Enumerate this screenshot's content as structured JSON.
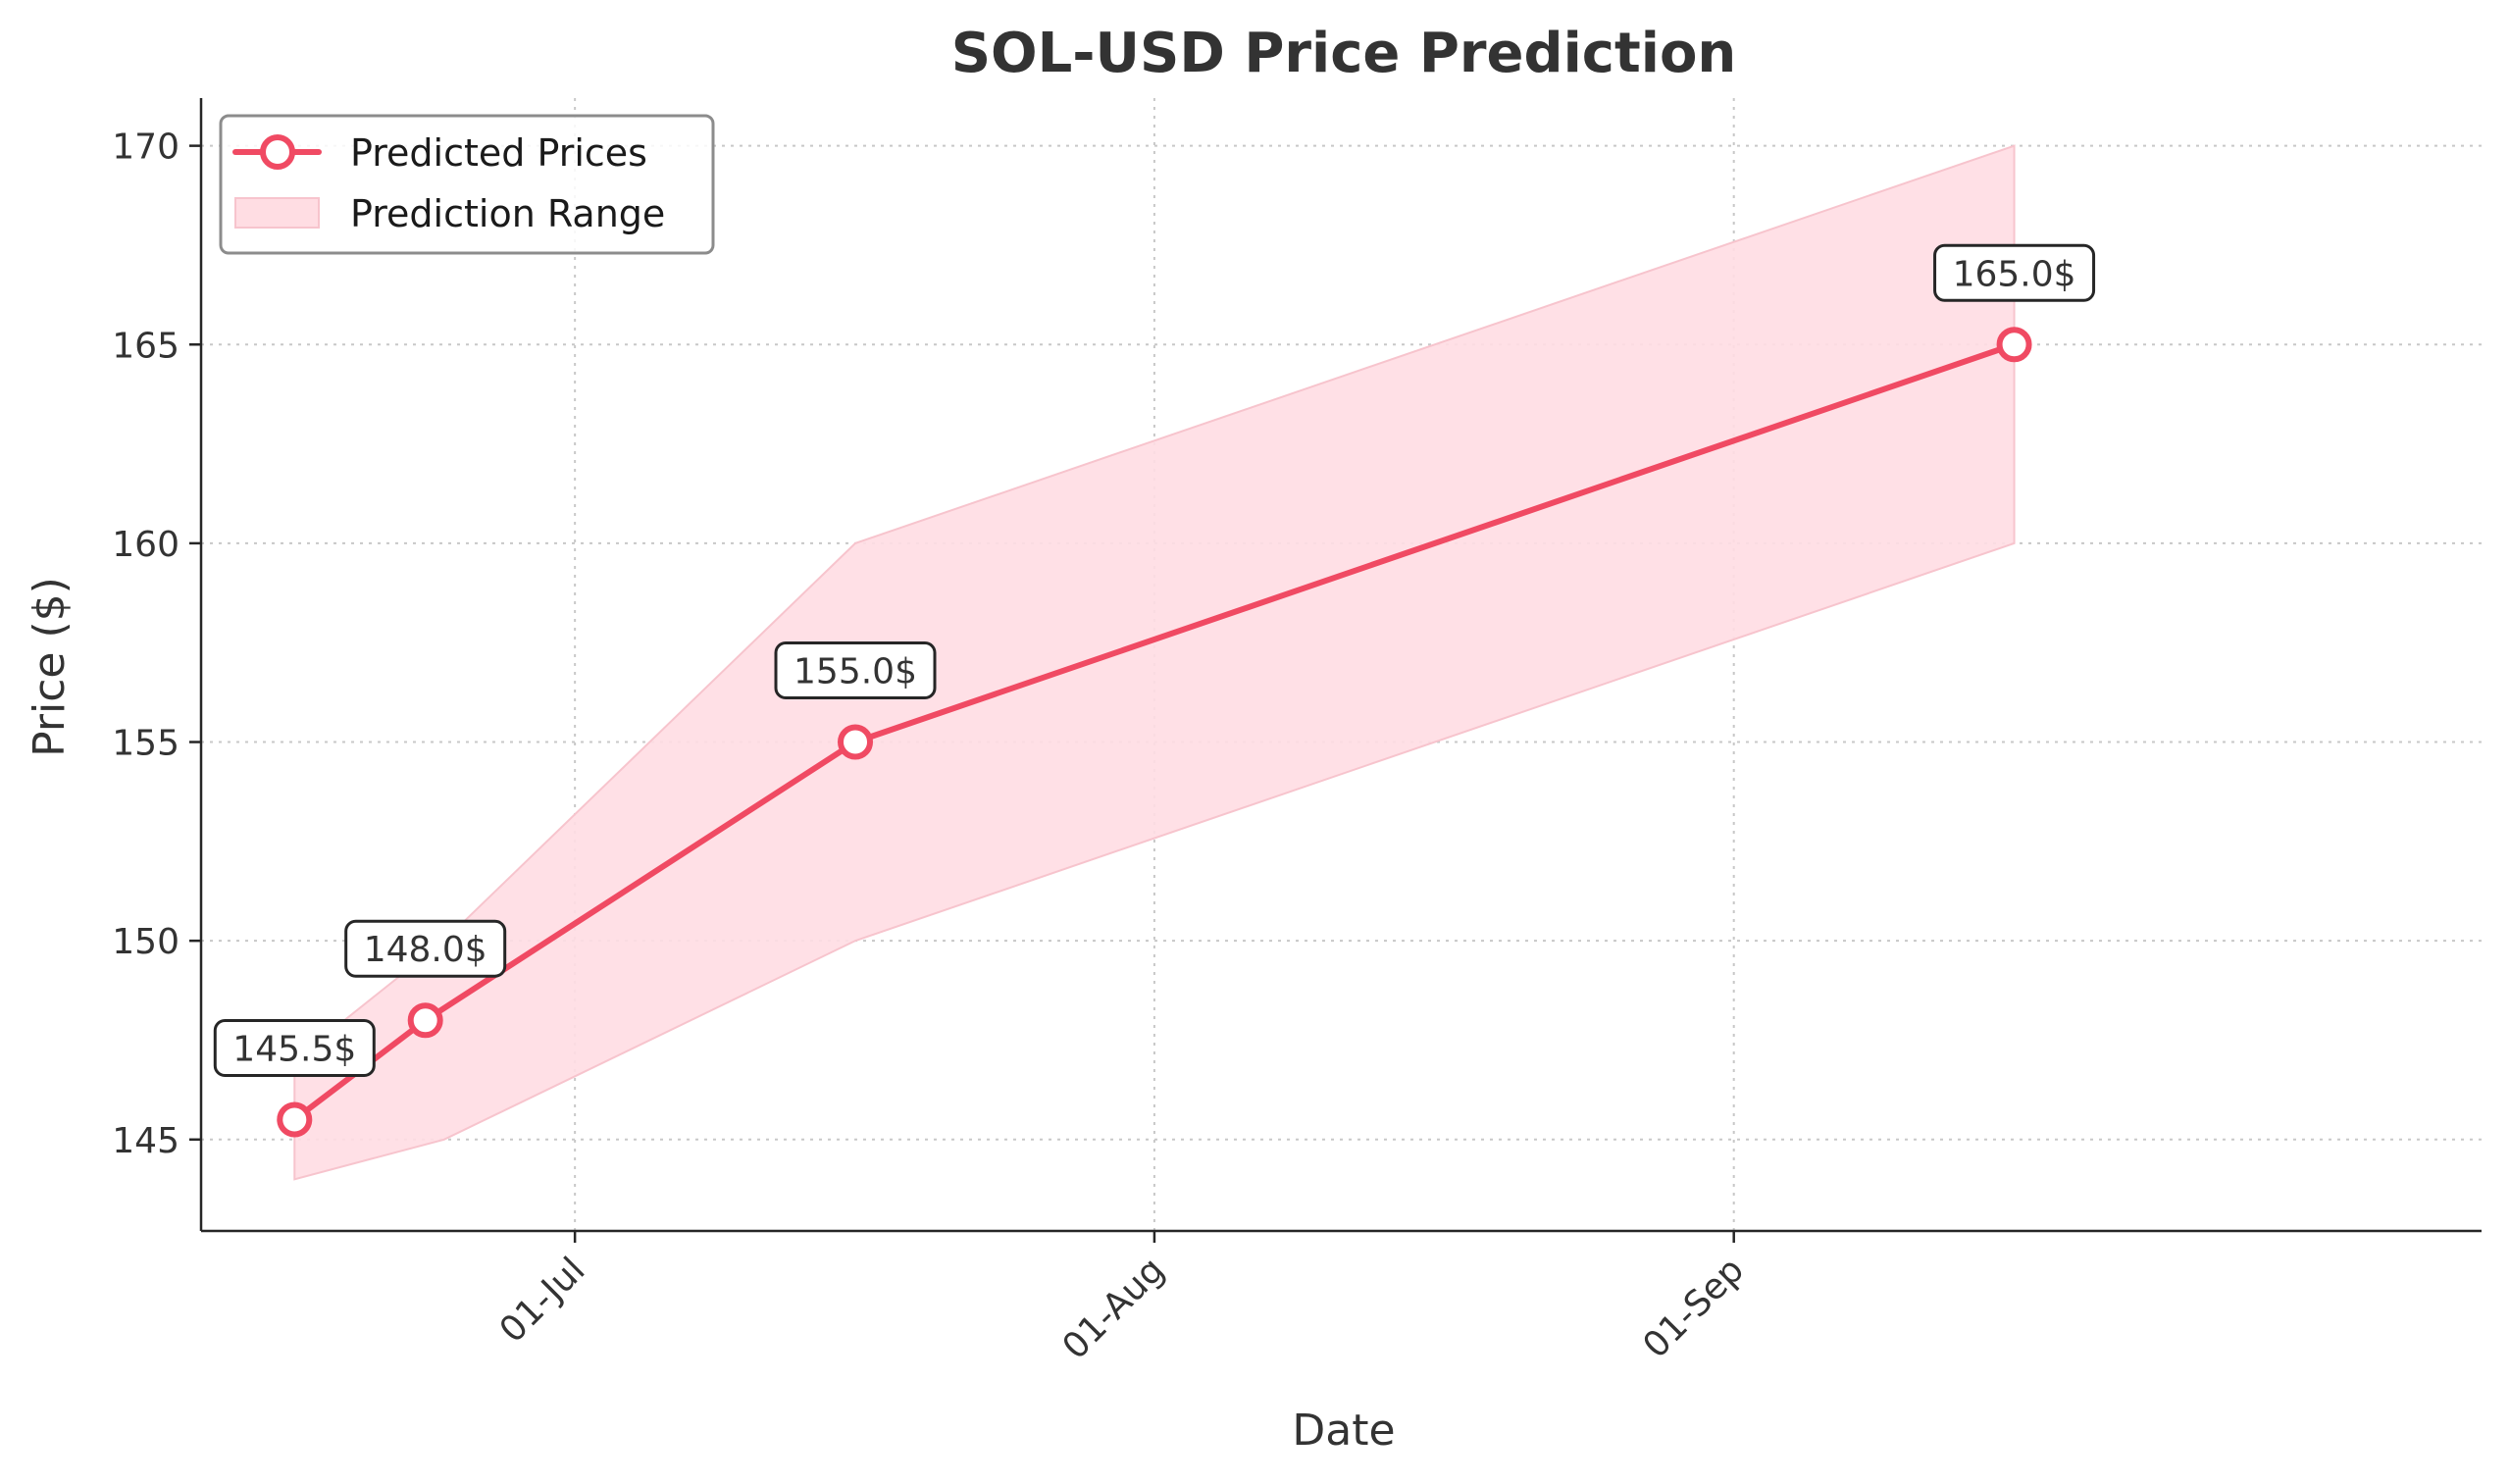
{
  "colors": {
    "line": "#f04a63",
    "band_fill": "#ffdde3",
    "band_edge": "#f7c4cd"
  },
  "chart_data": {
    "type": "line",
    "title": "SOL-USD Price Prediction",
    "xlabel": "Date",
    "ylabel": "Price ($)",
    "x_ticks": [
      "01-Jul",
      "01-Aug",
      "01-Sep"
    ],
    "x_tick_dates": [
      "2024-07-01",
      "2024-08-01",
      "2024-09-01"
    ],
    "xlim": [
      "2024-06-11",
      "2024-10-11"
    ],
    "y_ticks": [
      145,
      150,
      155,
      160,
      165,
      170
    ],
    "ylim": [
      142.7,
      171.2
    ],
    "grid": true,
    "legend_position": "top-left",
    "series": [
      {
        "name": "Predicted Prices",
        "x": [
          "2024-06-16",
          "2024-06-23",
          "2024-07-16",
          "2024-09-16"
        ],
        "values": [
          145.5,
          148.0,
          155.0,
          165.0
        ],
        "data_labels": [
          "145.5$",
          "148.0$",
          "155.0$",
          "165.0$"
        ]
      }
    ],
    "band": {
      "name": "Prediction Range",
      "x": [
        "2024-06-16",
        "2024-06-24",
        "2024-07-16",
        "2024-09-16"
      ],
      "lower": [
        144.0,
        145.0,
        150.0,
        160.0
      ],
      "upper": [
        147.0,
        150.0,
        160.0,
        170.0
      ]
    }
  }
}
